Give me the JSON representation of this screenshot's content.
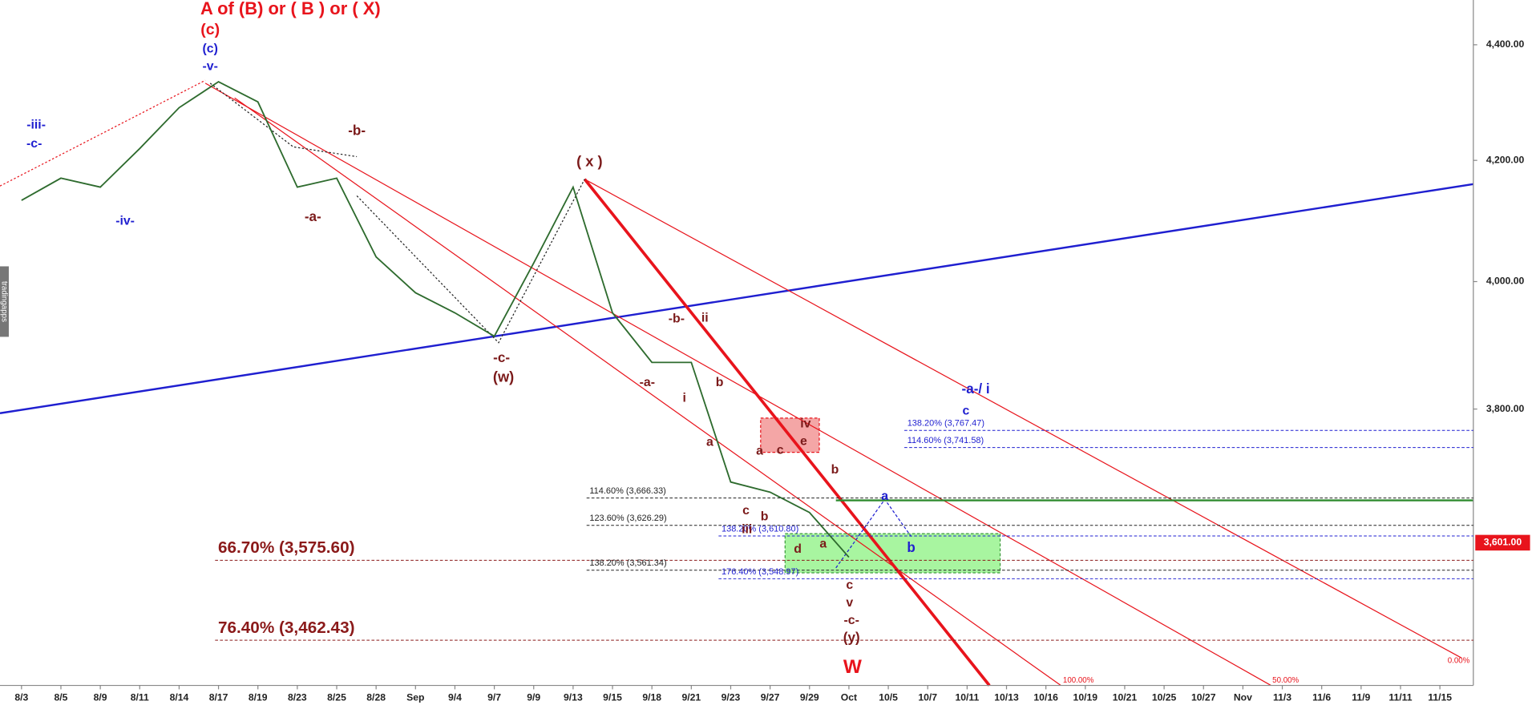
{
  "chart_data": {
    "type": "line",
    "log_scale": true,
    "ylim": [
      3400,
      4480
    ],
    "yticks": [
      {
        "value": 4400,
        "label": "4,400.00"
      },
      {
        "value": 4200,
        "label": "4,200.00"
      },
      {
        "value": 4000,
        "label": "4,000.00"
      },
      {
        "value": 3800,
        "label": "3,800.00"
      }
    ],
    "categories": [
      "8/3",
      "8/5",
      "8/9",
      "8/11",
      "8/14",
      "8/17",
      "8/19",
      "8/23",
      "8/25",
      "8/28",
      "Sep",
      "9/4",
      "9/7",
      "9/9",
      "9/13",
      "9/15",
      "9/18",
      "9/21",
      "9/23",
      "9/27",
      "9/29",
      "Oct",
      "10/5",
      "10/7",
      "10/11",
      "10/13",
      "10/16",
      "10/19",
      "10/21",
      "10/25",
      "10/27",
      "Nov",
      "11/3",
      "11/6",
      "11/9",
      "11/11",
      "11/15"
    ],
    "series": [
      {
        "color": "#2e6b2e",
        "values": [
          4133,
          4170,
          4155,
          4220,
          4290,
          4335,
          4300,
          4155,
          4170,
          4040,
          3982,
          3950,
          3913,
          4030,
          4155,
          3950,
          3872,
          3872,
          3690,
          3675,
          3645,
          3580,
          null,
          null,
          null,
          null,
          null,
          null,
          null,
          null,
          null,
          null,
          null,
          null,
          null,
          null,
          null
        ]
      }
    ],
    "last_price": {
      "value": 3601,
      "label": "3,601.00",
      "color": "#e8141c"
    },
    "levels": [
      {
        "value": 3767.47,
        "label": "138.20% (3,767.47)",
        "color": "#1f1fd0"
      },
      {
        "value": 3741.58,
        "label": "114.60% (3,741.58)",
        "color": "#1f1fd0"
      },
      {
        "value": 3666.33,
        "label": "114.60% (3,666.33)",
        "color": "#222222"
      },
      {
        "value": 3626.29,
        "label": "123.60% (3,626.29)",
        "color": "#222222"
      },
      {
        "value": 3610.8,
        "label": "138.20% (3,610.80)",
        "color": "#1f1fd0"
      },
      {
        "value": 3575.6,
        "label": "66.70% (3,575.60)",
        "color": "#8b1a1a"
      },
      {
        "value": 3561.34,
        "label": "138.20% (3,561.34)",
        "color": "#222222"
      },
      {
        "value": 3548.97,
        "label": "176.40% (3,548.97)",
        "color": "#1f1fd0"
      },
      {
        "value": 3462.43,
        "label": "76.40% (3,462.43)",
        "color": "#8b1a1a"
      }
    ],
    "annotations": [
      {
        "text": "A of (B) or ( B ) or ( X)",
        "color": "#e8141c"
      },
      {
        "text": "(c)",
        "color": "#e8141c"
      },
      {
        "text": "(c)",
        "color": "#1f1fd0"
      },
      {
        "text": "-v-",
        "color": "#1f1fd0"
      },
      {
        "text": "-iii-",
        "color": "#1f1fd0"
      },
      {
        "text": "-c-",
        "color": "#1f1fd0"
      },
      {
        "text": "-iv-",
        "color": "#1f1fd0"
      },
      {
        "text": "-a-/ i",
        "color": "#1f1fd0"
      },
      {
        "text": "c",
        "color": "#1f1fd0"
      },
      {
        "text": "a",
        "color": "#1f1fd0"
      },
      {
        "text": "b",
        "color": "#1f1fd0"
      },
      {
        "text": "-b-",
        "color": "#7b1a1a"
      },
      {
        "text": "-a-",
        "color": "#7b1a1a"
      },
      {
        "text": "( x )",
        "color": "#7b1a1a"
      },
      {
        "text": "-c-",
        "color": "#7b1a1a"
      },
      {
        "text": "(w)",
        "color": "#7b1a1a"
      },
      {
        "text": "-b-",
        "color": "#7b1a1a"
      },
      {
        "text": "ii",
        "color": "#7b1a1a"
      },
      {
        "text": "-a-",
        "color": "#7b1a1a"
      },
      {
        "text": "i",
        "color": "#7b1a1a"
      },
      {
        "text": "b",
        "color": "#7b1a1a"
      },
      {
        "text": "a",
        "color": "#7b1a1a"
      },
      {
        "text": "iv",
        "color": "#7b1a1a"
      },
      {
        "text": "e",
        "color": "#7b1a1a"
      },
      {
        "text": "a",
        "color": "#7b1a1a"
      },
      {
        "text": "c",
        "color": "#7b1a1a"
      },
      {
        "text": "b",
        "color": "#7b1a1a"
      },
      {
        "text": "c",
        "color": "#7b1a1a"
      },
      {
        "text": "b",
        "color": "#7b1a1a"
      },
      {
        "text": "iii",
        "color": "#7b1a1a"
      },
      {
        "text": "d",
        "color": "#7b1a1a"
      },
      {
        "text": "a",
        "color": "#7b1a1a"
      },
      {
        "text": "c",
        "color": "#7b1a1a"
      },
      {
        "text": "v",
        "color": "#7b1a1a"
      },
      {
        "text": "-c-",
        "color": "#7b1a1a"
      },
      {
        "text": "(y)",
        "color": "#7b1a1a"
      },
      {
        "text": "W",
        "color": "#e8141c"
      },
      {
        "text": "100.00%",
        "color": "#e8141c"
      },
      {
        "text": "50.00%",
        "color": "#e8141c"
      },
      {
        "text": "0.00%",
        "color": "#e8141c"
      }
    ],
    "watermark": "tradingapps"
  }
}
